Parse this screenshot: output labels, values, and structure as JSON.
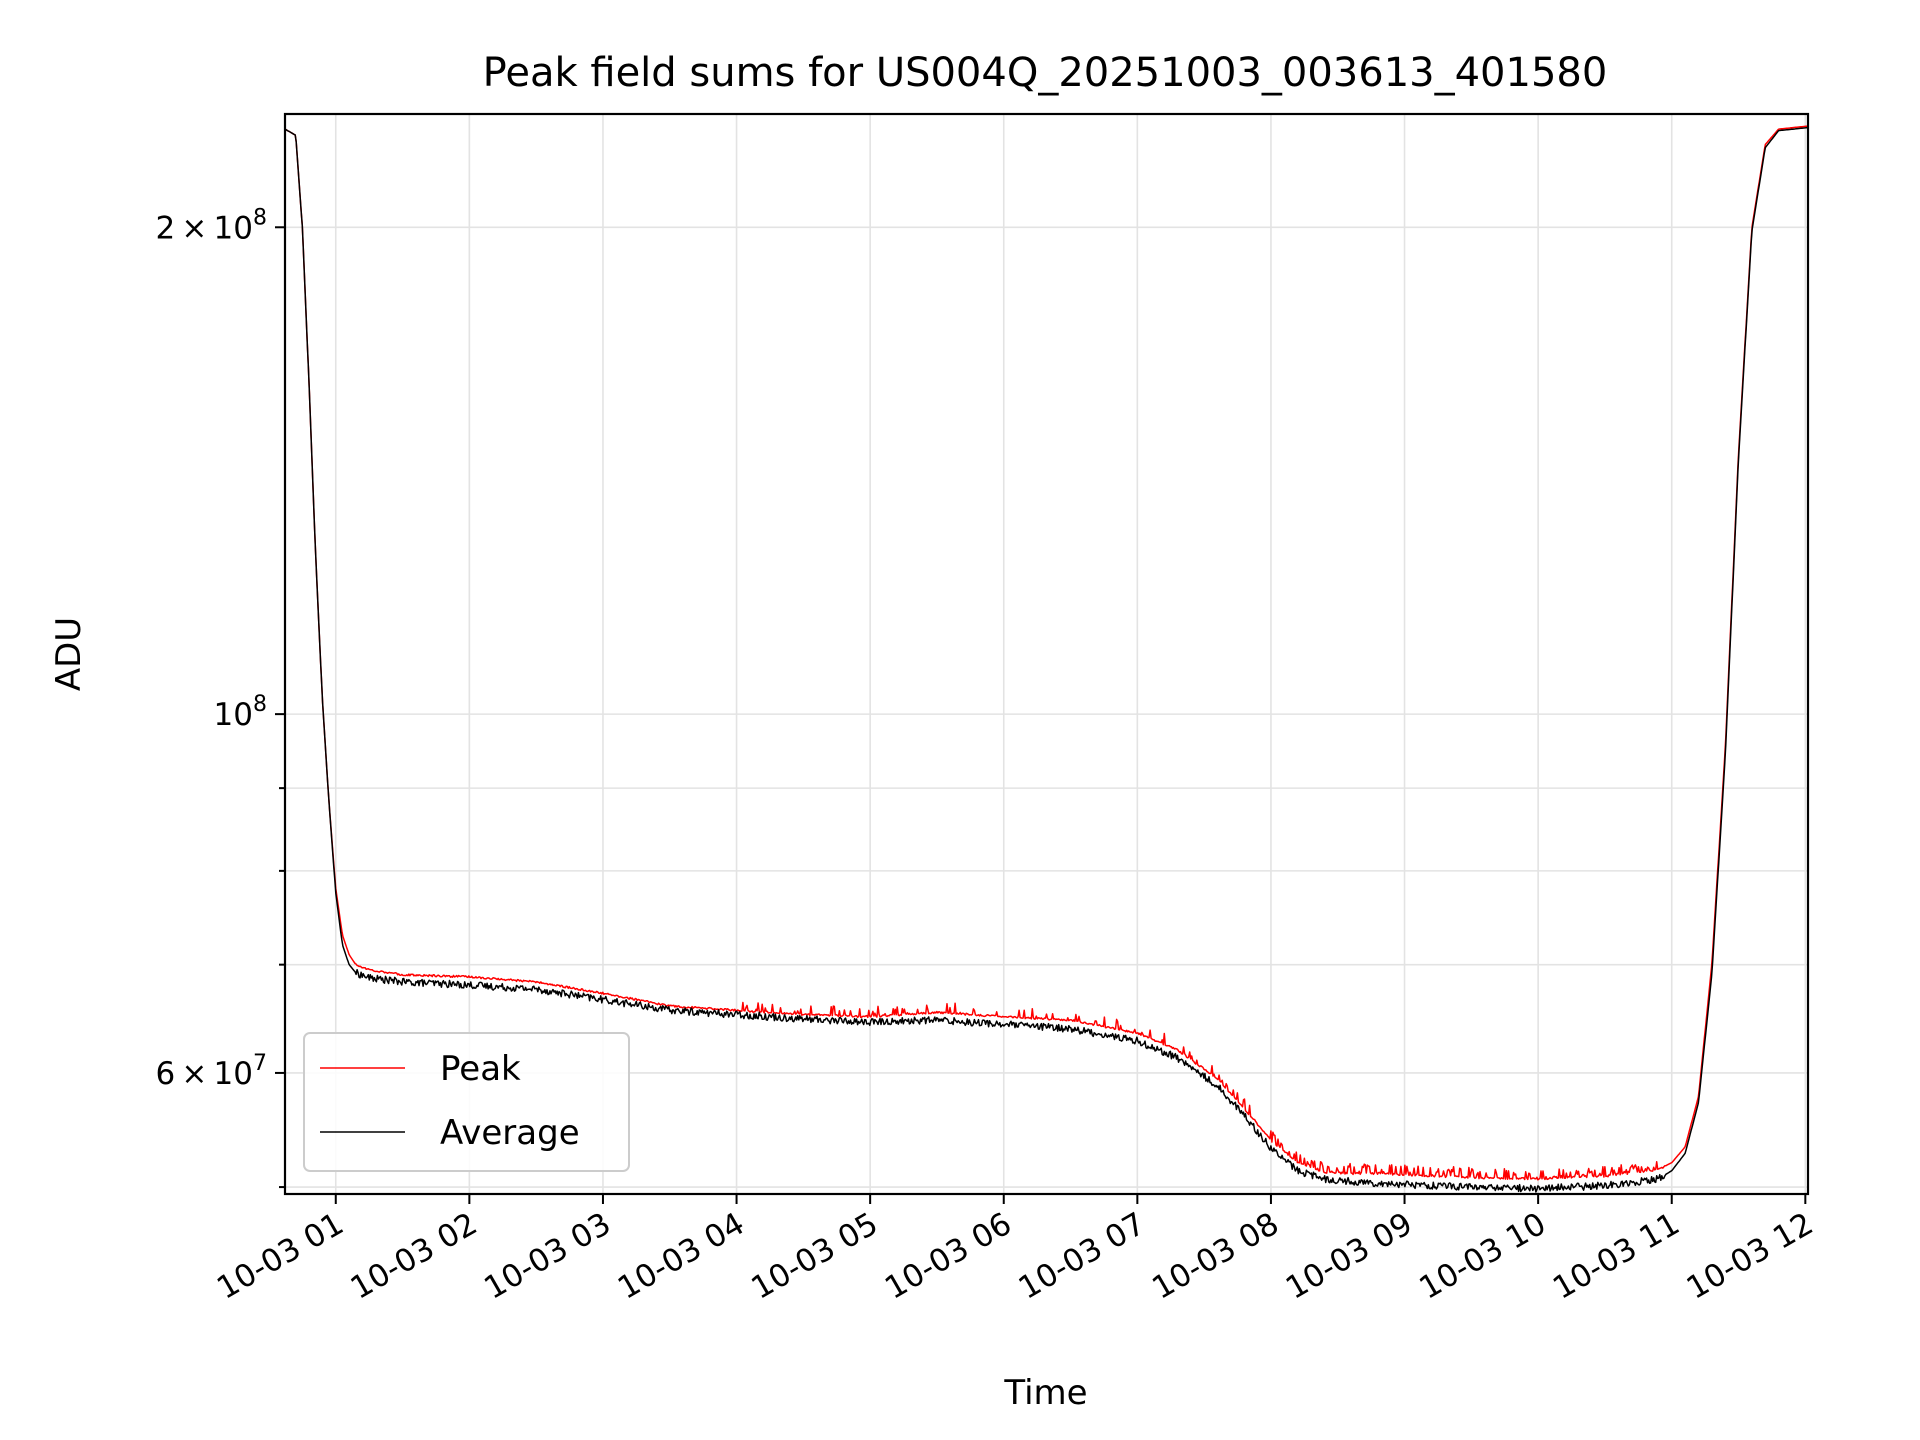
{
  "chart_data": {
    "type": "line",
    "title": "Peak field sums for US004Q_20251003_003613_401580",
    "xlabel": "Time",
    "ylabel": "ADU",
    "yscale": "log",
    "grid": true,
    "legend_position": "lower-left",
    "xlim_hours": [
      0.62,
      12.02
    ],
    "ylim": [
      50500000,
      235000000
    ],
    "x_ticks": [
      {
        "hour": 1,
        "label": "10-03 01"
      },
      {
        "hour": 2,
        "label": "10-03 02"
      },
      {
        "hour": 3,
        "label": "10-03 03"
      },
      {
        "hour": 4,
        "label": "10-03 04"
      },
      {
        "hour": 5,
        "label": "10-03 05"
      },
      {
        "hour": 6,
        "label": "10-03 06"
      },
      {
        "hour": 7,
        "label": "10-03 07"
      },
      {
        "hour": 8,
        "label": "10-03 08"
      },
      {
        "hour": 9,
        "label": "10-03 09"
      },
      {
        "hour": 10,
        "label": "10-03 10"
      },
      {
        "hour": 11,
        "label": "10-03 11"
      },
      {
        "hour": 12,
        "label": "10-03 12"
      }
    ],
    "y_major_ticks": [
      {
        "value": 200000000,
        "mantissa": "2",
        "exponent": "8"
      },
      {
        "value": 100000000,
        "mantissa": "",
        "exponent": "8"
      },
      {
        "value": 60000000,
        "mantissa": "6",
        "exponent": "7"
      }
    ],
    "y_minor_ticks": [
      51000000,
      70000000,
      80000000,
      90000000
    ],
    "series": [
      {
        "name": "Peak",
        "color": "#ff0000",
        "hours": [
          0.62,
          0.7,
          0.75,
          0.8,
          0.85,
          0.9,
          0.95,
          1.0,
          1.05,
          1.1,
          1.15,
          1.25,
          1.5,
          2.0,
          2.5,
          3.0,
          3.5,
          4.0,
          4.5,
          5.0,
          5.5,
          6.0,
          6.5,
          7.0,
          7.3,
          7.6,
          7.8,
          8.0,
          8.2,
          8.4,
          8.6,
          8.8,
          9.0,
          9.5,
          10.0,
          10.5,
          10.9,
          11.0,
          11.1,
          11.2,
          11.3,
          11.4,
          11.5,
          11.6,
          11.7,
          11.8,
          12.02
        ],
        "values": [
          230000000,
          228000000,
          200000000,
          160000000,
          125000000,
          102000000,
          88000000,
          78000000,
          73000000,
          71000000,
          70000000,
          69500000,
          69000000,
          68800000,
          68300000,
          67200000,
          66000000,
          65600000,
          65200000,
          65000000,
          65400000,
          65000000,
          64700000,
          63500000,
          62000000,
          59500000,
          57000000,
          54500000,
          52800000,
          52100000,
          52000000,
          52000000,
          51900000,
          51700000,
          51600000,
          51800000,
          52300000,
          52800000,
          54000000,
          58000000,
          70000000,
          95000000,
          145000000,
          200000000,
          225000000,
          230000000,
          231000000
        ]
      },
      {
        "name": "Average",
        "color": "#000000",
        "hours": [
          0.62,
          0.7,
          0.75,
          0.8,
          0.85,
          0.9,
          0.95,
          1.0,
          1.05,
          1.1,
          1.15,
          1.25,
          1.5,
          2.0,
          2.5,
          3.0,
          3.5,
          4.0,
          4.5,
          5.0,
          5.5,
          6.0,
          6.5,
          7.0,
          7.3,
          7.6,
          7.8,
          8.0,
          8.2,
          8.4,
          8.6,
          8.8,
          9.0,
          9.5,
          10.0,
          10.5,
          10.9,
          11.0,
          11.1,
          11.2,
          11.3,
          11.4,
          11.5,
          11.6,
          11.7,
          11.8,
          12.02
        ],
        "values": [
          230000000,
          228000000,
          200000000,
          160000000,
          125000000,
          102000000,
          88000000,
          77500000,
          72000000,
          70000000,
          69200000,
          68700000,
          68300000,
          68000000,
          67600000,
          66600000,
          65600000,
          65200000,
          64800000,
          64500000,
          64700000,
          64300000,
          63900000,
          62800000,
          61300000,
          58900000,
          56500000,
          53900000,
          52200000,
          51600000,
          51400000,
          51300000,
          51200000,
          51000000,
          50900000,
          51100000,
          51600000,
          52200000,
          53500000,
          57500000,
          69000000,
          94000000,
          144000000,
          199000000,
          224000000,
          229500000,
          230500000
        ]
      }
    ]
  }
}
